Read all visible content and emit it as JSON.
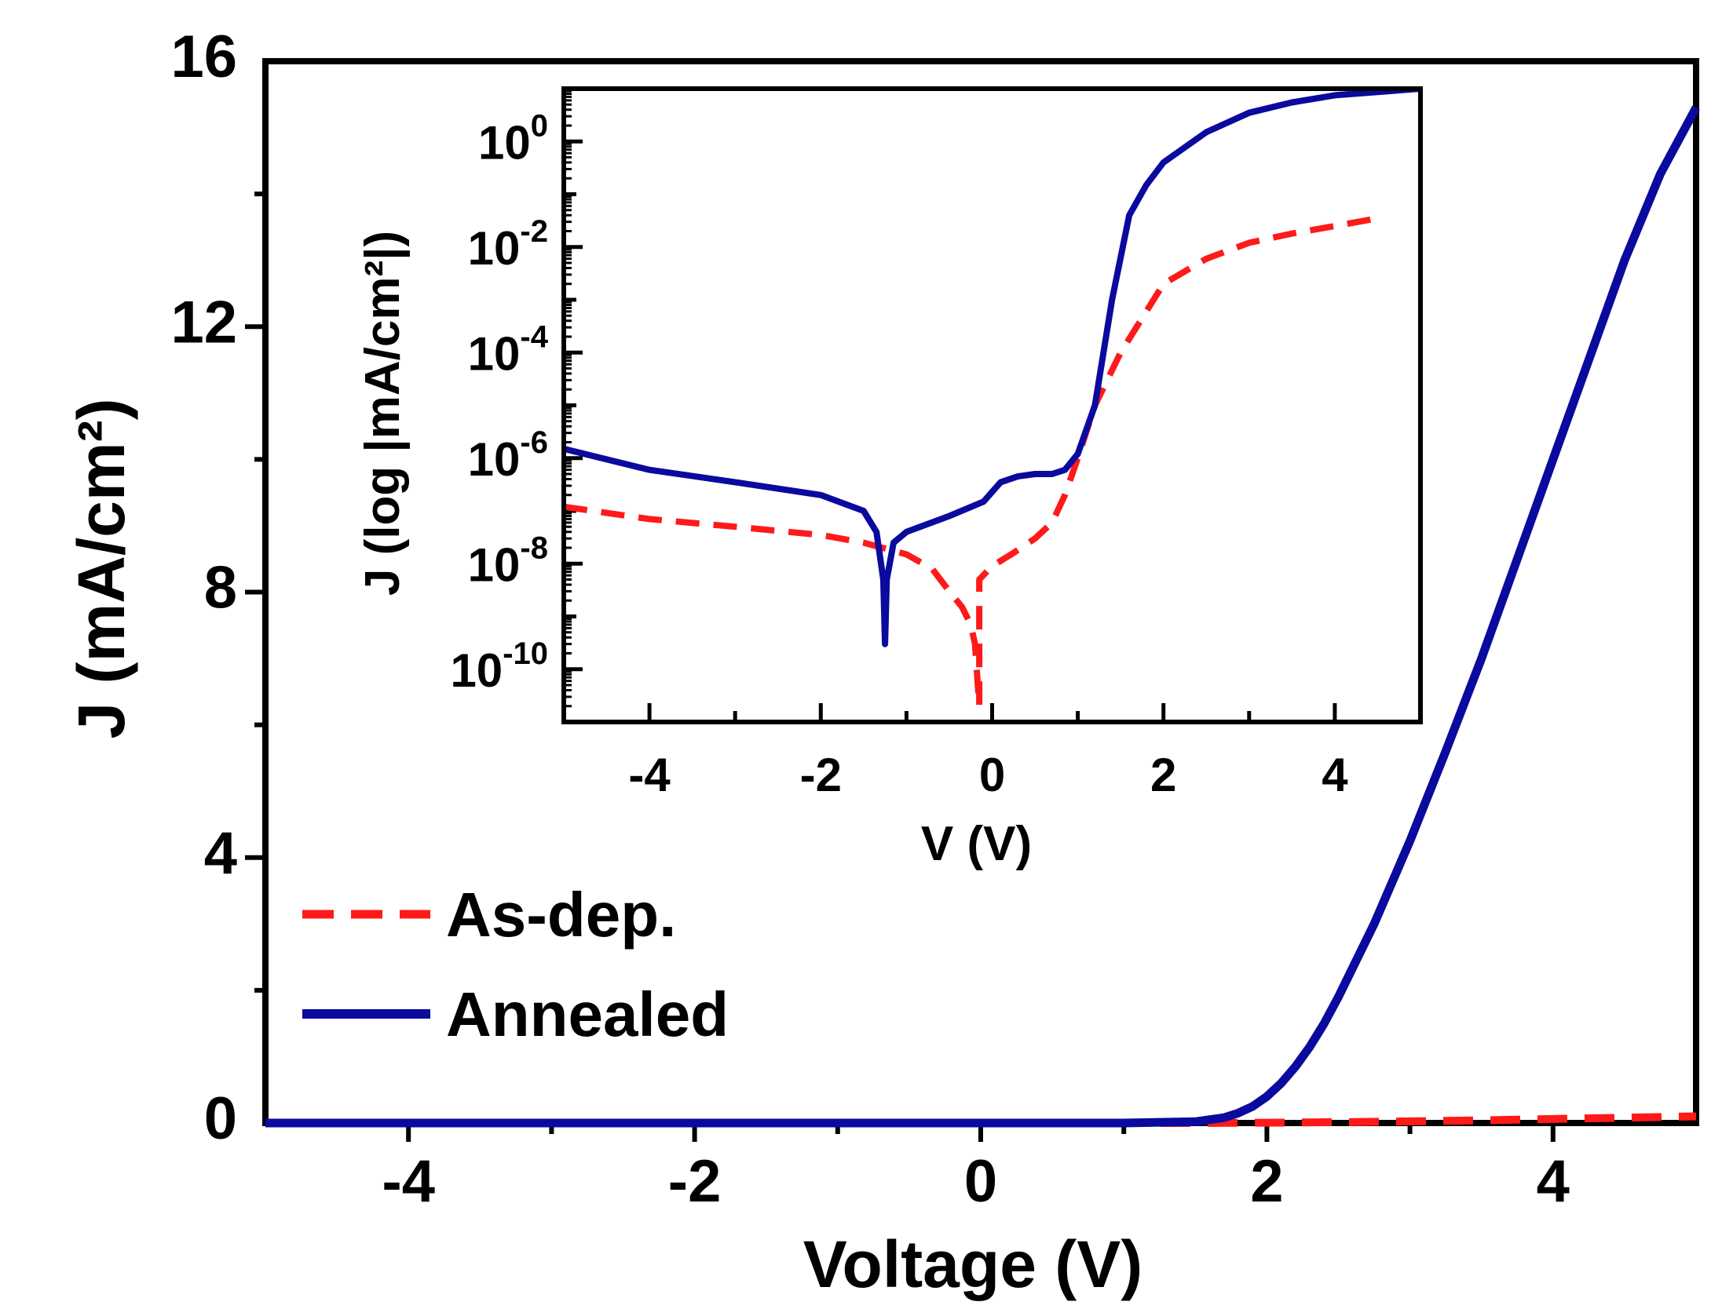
{
  "chart_data": [
    {
      "type": "line",
      "xlabel": "Voltage (V)",
      "ylabel": "J (mA/cm²)",
      "xlim": [
        -5,
        5
      ],
      "ylim": [
        0,
        16
      ],
      "x_ticks": [
        "-4",
        "-2",
        "0",
        "2",
        "4"
      ],
      "y_ticks": [
        "0",
        "4",
        "8",
        "12",
        "16"
      ],
      "legend": {
        "position": "lower-left",
        "entries": [
          "As-dep.",
          "Annealed"
        ]
      },
      "series": [
        {
          "name": "As-dep.",
          "color": "#ff1a1a",
          "style": "dashed",
          "x": [
            -5,
            -2,
            0,
            1.5,
            2,
            2.5,
            3,
            3.5,
            4,
            4.5,
            5
          ],
          "y": [
            0,
            0,
            0,
            0,
            0.005,
            0.012,
            0.025,
            0.04,
            0.06,
            0.08,
            0.1
          ]
        },
        {
          "name": "Annealed",
          "color": "#0a0a9e",
          "style": "solid",
          "x": [
            -5,
            -2,
            0,
            1,
            1.5,
            1.7,
            1.8,
            1.9,
            2.0,
            2.1,
            2.2,
            2.3,
            2.4,
            2.5,
            2.75,
            3.0,
            3.25,
            3.5,
            3.75,
            4.0,
            4.25,
            4.5,
            4.75,
            5.0
          ],
          "y": [
            0,
            0,
            0,
            0,
            0.02,
            0.08,
            0.15,
            0.25,
            0.4,
            0.6,
            0.85,
            1.15,
            1.5,
            1.9,
            3.0,
            4.25,
            5.6,
            7.0,
            8.5,
            10.0,
            11.5,
            13.0,
            14.3,
            15.3
          ]
        }
      ]
    },
    {
      "type": "line",
      "inset": true,
      "xlabel": "V (V)",
      "ylabel": "J (log |mA/cm²|)",
      "yscale": "log",
      "xlim": [
        -5,
        5
      ],
      "ylim": [
        1e-11,
        10
      ],
      "x_ticks": [
        "-4",
        "-2",
        "0",
        "2",
        "4"
      ],
      "y_ticks": [
        "10^-10",
        "10^-8",
        "10^-6",
        "10^-4",
        "10^-2",
        "10^0"
      ],
      "series": [
        {
          "name": "As-dep.",
          "color": "#ff1a1a",
          "style": "dashed",
          "x": [
            -5,
            -4,
            -3,
            -2,
            -1.5,
            -1,
            -0.7,
            -0.5,
            -0.35,
            -0.25,
            -0.2,
            -0.15,
            -0.15,
            0,
            0.25,
            0.5,
            0.7,
            0.85,
            1.0,
            1.2,
            1.5,
            2.0,
            2.5,
            3.0,
            3.5,
            4.0,
            4.5
          ],
          "y": [
            1.2e-07,
            7e-08,
            5e-08,
            3.5e-08,
            2.5e-08,
            1.5e-08,
            8e-09,
            3e-09,
            1.5e-09,
            7e-10,
            3e-10,
            2e-11,
            5e-09,
            9e-09,
            1.6e-08,
            3e-08,
            6e-08,
            2e-07,
            1e-06,
            1e-05,
            0.0001,
            0.002,
            0.006,
            0.012,
            0.018,
            0.025,
            0.035
          ]
        },
        {
          "name": "Annealed",
          "color": "#0a0a9e",
          "style": "solid",
          "x": [
            -5,
            -4,
            -3,
            -2,
            -1.5,
            -1.35,
            -1.27,
            -1.25,
            -1.23,
            -1.15,
            -1.0,
            -0.5,
            -0.1,
            0.1,
            0.3,
            0.5,
            0.7,
            0.85,
            1.0,
            1.2,
            1.4,
            1.6,
            1.8,
            2.0,
            2.5,
            3.0,
            3.5,
            4.0,
            5.0
          ],
          "y": [
            1.5e-06,
            6e-07,
            3.5e-07,
            2e-07,
            1e-07,
            4e-08,
            5e-09,
            3e-10,
            5e-09,
            2.5e-08,
            4e-08,
            8e-08,
            1.5e-07,
            3.5e-07,
            4.5e-07,
            5e-07,
            5e-07,
            6e-07,
            1.2e-06,
            1e-05,
            0.001,
            0.04,
            0.15,
            0.4,
            1.5,
            3.5,
            5.5,
            7.5,
            10
          ]
        }
      ]
    }
  ]
}
